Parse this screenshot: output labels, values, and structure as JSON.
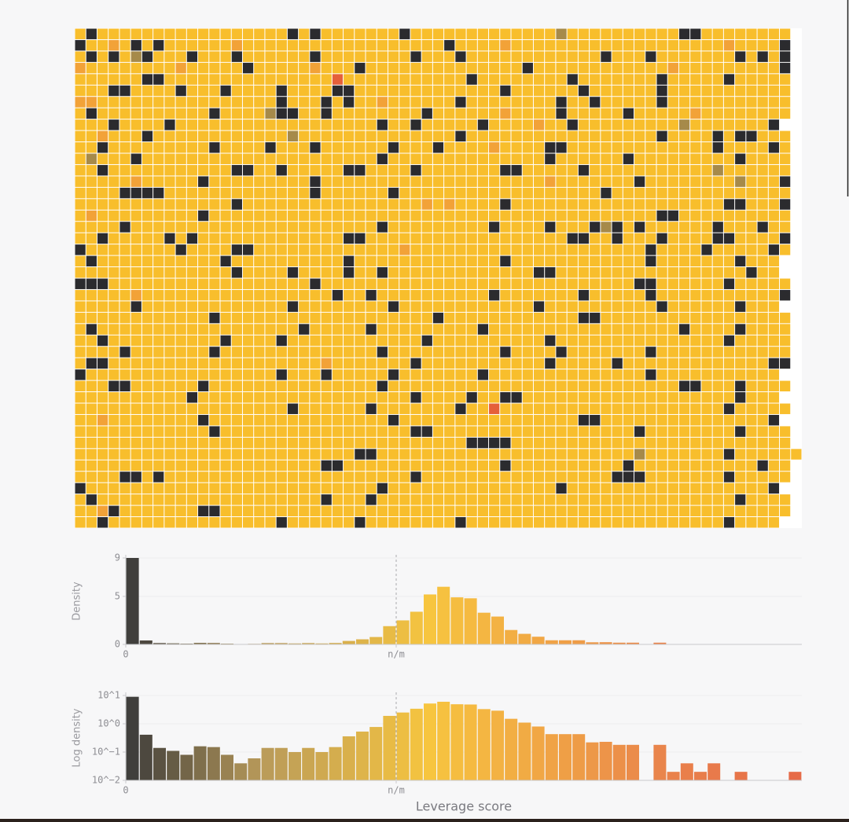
{
  "chart_data": [
    {
      "type": "grid",
      "palette": {
        "y": "#f8be2c",
        "k": "#2b2b2e",
        "o": "#f2a238",
        "b": "#a68a4a",
        "r": "#e5603a"
      },
      "rows": [
        "ykyyyyyyyyyyyyyyyyykykyyyyyyykyyyyyyyyyyyyybyyyyyyyyyykkyyyyyyyy",
        "kyyoykykyyyyyyoyyyyyyyyyyyyyyyyyykyyyyoyyyyyyyyyyyyyyyyyyyoyyyyk",
        "ykykybkyyykyyykyyyyyykyyyyyyyykyyykyyyyyyyyyyyykyyykyyyyyyykykyk",
        "oyyyyyyyyoyyyyykyyyyyoyyykyyyyyyyyyyyyyykyyyyyyyyyyyyoyyyyyyyyyk",
        "yyyyyykkyyyyyyyyyyyyyyyryyyyyyyyyyykyyyyyyyykyyyyyyykyyyyykyyyyy",
        "yyykkyyyykyyykyyyykyyyykkyyyyyyyyyyyyykyyyyyykyyyyyykyyyyyyyyyyy",
        "ooyyyyyyyyyyyyyyyykyyykykyyoyyyyyykyyyyyyyykyykyyyyykyyyyyyyyyyy",
        "ykyyyyyyyyyykyyyybkkyykyyyyyyyykyyyyyyoyyyykyyyyykyyyyyoyyyyyyyy",
        "yyykyyyykyyyyyyyyyyyyyyyyyykyykyyyyykyyyyoyykyyyyyyyyybyyyyyyyk",
        "yyoyyykyyyyyyyyyyyybyyyyyyyyyyyyyykyyyyyyyyyyyyyyyyykyyyykykkyyy",
        "yykyyyyyyyyykyyyykyyykyyyyyykyyykyyyyoyyyykkyyyyyyyyyyyyykyyyyky",
        "ybyyykyyyyyyyyyyyyyyyyyyyyykyyyyyyyyyyyyyykyyyyyykyyyyyyyyykyyyy",
        "yykyyyyyyyyyyykkyykyyyyykkyyyykyyyyyyykkyyyyykyyyyyyyyyyybyyyyyy",
        "yyyyyoyyyyykyyyyyyyyykyyyyyyyyyyyyyyyyyyyyoyyyyyyykyyyyyyyybyyyk",
        "yyyykkkkyyyyyyyyyyyyykyyyyyykyyyyyyyyyyyyyyyyyykyyyyyyyyyyyyyyyy",
        "yyyyyyyyyyyyyykyyyyyyyyyyyyyyyyoyoyyyykyyyyyyyyyyyyyyyyyyykkyyyk",
        "yoyyyyyyyyykyyyyyyyyyyyyyyyyyyyyyyyyyyyyyyyyyyyyyyyykkyyyyyyyyyy",
        "yyyykyyyyyyyyyyyyyyyyyyyyyykyyyyyyyyykyyyykyyykbkykyyyyyykyyykyy",
        "yykyyyyykykyyyyyyyyyyyyykkyyyyyyyyyyyyyyyyyykkyykyyykyyyykkyyyyk",
        "kyyyyyyyykyyyykkyyyyyyyyyyyyyoyyyyyyyyyyyyyyyyyyyyykyyyykyyyyyky",
        "ykyyyyyyyyyyykyyyyyyyyyykyyyyyyyyyyyyykyyyyyyyyyyyykyyyyyyykyyy",
        "yyyyyyyyyyyyyykyyyykyyyykyykyyyyyyyyyyyyykkyyyyyyyyyyyyyyyyykyy",
        "kkkyyyyyyyyyyyyyyyyyykyyyyyyyyyyyyyyyyyyyyyyyyyyyykkyyyyyykyyyyy",
        "yyyyyoyyyyyyyyyyyyyyyyykyykyyyyyyyyyykyyyyyyykyyyyykyyyyyyyyyyyk",
        "yyyyykyyyyyyyyyyyyykyyyyyyyykyyyyyyyyyyyykyyyyyyyyyykyyyyyykyyy",
        "yyyyyyyyyyyykyyyyyyyyyyyyyyyyyyykyyyyyyyyyyyykkyyyyyyyyyyyyyyyyy",
        "ykyyyyyyyyyyyyyyyyyykyyyyykyyyyyyyyykyyyyyyyyyyyyyyyyykyyyykyyyy",
        "yykyyyyyyyyyykyyyykyyyyyyyyyyyykyyyyyyyyyykyyyyyyyyyyyyyyykyyyyy",
        "yyyykyyyyyyykyyyyyyyyyyyyyykyyyyyyyyyykyyyykyyyyyyykyyyyyyyyyyyy",
        "ykkyyyyyyyyyyyyyyyyyyyoyyyyyyykyyyyyyyyyyykyyyyykyyyyyyyyyyyyykk",
        "kyyyyyyyyyyyyyyyyykyyykyyyyykyyyyyyykyyyyyyyyyyyyyykyyyyyyyyyyy",
        "yyykkyyyyyykyyyyyyyyyyyyyyykyyyyyyyyyyyyyyyyyyyyyyyyyykkyyykyyyy",
        "yyyyyyyyyykyyyyyyyyyyyyyyyyyyykyyyykyykkyyyyyyyyyyyyyyyyyyykyyy",
        "yyyyyyyyyyyyyyyyyyykyyyyyykyyyyyyykyyryyyyyyyyyyyyyyyyyyyykyyyyy",
        "yyoyyyyyyyykyyyyyyyyyyyyyyyykyyyyyyyyyyyyyyyykkyyyyyyyyyyyyyyyk",
        "yyyyyyyyyyyykyyyyyyyyyyyyyyyyykkyyyyyyyyyyyyyyyyyykyyyyyyyykyyyy",
        "yyyyyyyyyyyyyyyyyyyyyyyyyyyyyyyyyyykkkkyyyyyyyyyyyyyyyyyyyyyyyyy",
        "yyyyyyyyyyyyyyyyyyyyyyyyykkyyyyyyyyyyyyyyyyyyyyyyybyyyyyyykyyyyyy",
        "yyyyyyyyyyyyyyyyyyyyyykkyyyyyyyyyyyyyykyyyyyyyyyykyyyyyyyyyyykyy",
        "yyyykkykyyyyyyyyyyyyyyyyyyyyyykyyyyyyyyyyyyyyyyykkkyyyyyyykyyyyy",
        "kyyyyyyyyyyyyyyyyyyyyyyyyyykyyyyyyyyyyyyyyykyyyyyyyyyyyyyyyyyyk",
        "ykyyyyyyyyyyyyyyyyyyyykyyykyyyyyyyyyyyyyyyyyyyyyyyyyyyyyyyykyyyy",
        "yyokyyyyyyykkyyyyyyyyyyyyyyyyyyyyyyyyyyyyyyyyyyyyyyyyyyyyyyyyyyy",
        "yykyyyyyyyyyyyyyyykyyyyyykyyyyyyyykyyyyyyyyyyyyyyyyyyyyyyykyyyy"
      ]
    },
    {
      "type": "histogram",
      "ylabel": "Density",
      "bins": [
        0,
        0.02,
        0.04,
        0.06,
        0.08,
        0.1,
        0.12,
        0.14,
        0.16,
        0.18,
        0.2,
        0.22,
        0.24,
        0.26,
        0.28,
        0.3,
        0.32,
        0.34,
        0.36,
        0.38,
        0.4,
        0.42,
        0.44,
        0.46,
        0.48,
        0.5,
        0.52,
        0.54,
        0.56,
        0.58,
        0.6,
        0.62,
        0.64,
        0.66,
        0.68,
        0.7,
        0.72,
        0.74,
        0.76,
        0.78,
        0.8,
        0.82,
        0.84,
        0.86,
        0.88,
        0.9,
        0.92,
        0.94,
        0.96,
        0.98,
        1
      ],
      "values": [
        9,
        0.41,
        0.14,
        0.11,
        0.08,
        0.16,
        0.15,
        0.08,
        0.04,
        0.06,
        0.14,
        0.14,
        0.1,
        0.14,
        0.1,
        0.15,
        0.36,
        0.53,
        0.77,
        1.9,
        2.5,
        3.4,
        5.2,
        6,
        4.9,
        4.8,
        3.3,
        2.9,
        1.5,
        1.1,
        0.8,
        0.43,
        0.43,
        0.43,
        0.22,
        0.23,
        0.18,
        0.18,
        0,
        0.18,
        0.02,
        0.04,
        0.02,
        0.04,
        0,
        0.02,
        0,
        0,
        0,
        0.02
      ],
      "xlim": [
        0,
        1
      ],
      "xticks": [
        0,
        {
          "value": 0.4,
          "label": "n/m"
        }
      ],
      "xtick_lines": "dashed",
      "ylim": [
        0,
        9
      ],
      "yticks": [
        0,
        5,
        9
      ],
      "grid": true,
      "color_stops": [
        {
          "value": 0,
          "color": "#3a3a3a"
        },
        {
          "value": 0.2,
          "color": "#b89a5a"
        },
        {
          "value": 0.45,
          "color": "#f7c53f"
        },
        {
          "value": 0.8,
          "color": "#e9834c"
        },
        {
          "value": 1,
          "color": "#e66a48"
        }
      ]
    },
    {
      "type": "histogram",
      "ylabel": "Log density",
      "xlabel": "Leverage score",
      "yscale": "log",
      "bins": [
        0,
        0.02,
        0.04,
        0.06,
        0.08,
        0.1,
        0.12,
        0.14,
        0.16,
        0.18,
        0.2,
        0.22,
        0.24,
        0.26,
        0.28,
        0.3,
        0.32,
        0.34,
        0.36,
        0.38,
        0.4,
        0.42,
        0.44,
        0.46,
        0.48,
        0.5,
        0.52,
        0.54,
        0.56,
        0.58,
        0.6,
        0.62,
        0.64,
        0.66,
        0.68,
        0.7,
        0.72,
        0.74,
        0.76,
        0.78,
        0.8,
        0.82,
        0.84,
        0.86,
        0.88,
        0.9,
        0.92,
        0.94,
        0.96,
        0.98,
        1
      ],
      "values": [
        9,
        0.41,
        0.14,
        0.11,
        0.08,
        0.16,
        0.15,
        0.08,
        0.04,
        0.06,
        0.14,
        0.14,
        0.1,
        0.14,
        0.1,
        0.15,
        0.36,
        0.53,
        0.77,
        1.9,
        2.5,
        3.4,
        5.2,
        6,
        4.9,
        4.8,
        3.3,
        2.9,
        1.5,
        1.1,
        0.8,
        0.43,
        0.43,
        0.43,
        0.22,
        0.23,
        0.18,
        0.18,
        0,
        0.18,
        0.02,
        0.04,
        0.02,
        0.04,
        0,
        0.02,
        0,
        0,
        0,
        0.02
      ],
      "xlim": [
        0,
        1
      ],
      "xticks": [
        0,
        {
          "value": 0.4,
          "label": "n/m"
        }
      ],
      "xtick_lines": "dashed",
      "ylim": [
        0.01,
        10
      ],
      "yticks": [
        {
          "value": 0.01,
          "label": "10^−2"
        },
        {
          "value": 0.1,
          "label": "10^−1"
        },
        {
          "value": 1,
          "label": "10^0"
        },
        {
          "value": 10,
          "label": "10^1"
        }
      ],
      "grid": true,
      "color_stops": [
        {
          "value": 0,
          "color": "#3a3a3a"
        },
        {
          "value": 0.2,
          "color": "#b89a5a"
        },
        {
          "value": 0.45,
          "color": "#f7c53f"
        },
        {
          "value": 0.8,
          "color": "#e9834c"
        },
        {
          "value": 1,
          "color": "#e66a48"
        }
      ]
    }
  ]
}
